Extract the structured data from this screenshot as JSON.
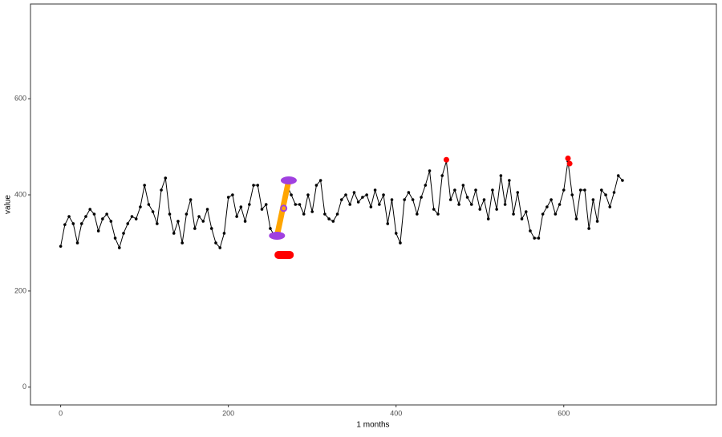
{
  "chart_data": {
    "type": "line",
    "x_label": "1 months",
    "y_label": "value",
    "x": [
      0,
      5,
      10,
      15,
      20,
      25,
      30,
      35,
      40,
      45,
      50,
      55,
      60,
      65,
      70,
      75,
      80,
      85,
      90,
      95,
      100,
      105,
      110,
      115,
      120,
      125,
      130,
      135,
      140,
      145,
      150,
      155,
      160,
      165,
      170,
      175,
      180,
      185,
      190,
      195,
      200,
      205,
      210,
      215,
      220,
      225,
      230,
      235,
      240,
      245,
      250,
      255,
      260,
      265,
      270,
      275,
      280,
      285,
      290,
      295,
      300,
      305,
      310,
      315,
      320,
      325,
      330,
      335,
      340,
      345,
      350,
      355,
      360,
      365,
      370,
      375,
      380,
      385,
      390,
      395,
      400,
      405,
      410,
      415,
      420,
      425,
      430,
      435,
      440,
      445,
      450,
      455,
      460,
      465,
      470,
      475,
      480,
      485,
      490,
      495,
      500,
      505,
      510,
      515,
      520,
      525,
      530,
      535,
      540,
      545,
      550,
      555,
      560,
      565,
      570,
      575,
      580,
      585,
      590,
      595,
      600,
      605,
      610,
      615,
      620,
      625,
      630,
      635,
      640,
      645,
      650,
      655,
      660,
      665,
      670
    ],
    "series": [
      {
        "name": "value",
        "color": "#000000",
        "values": [
          293,
          338,
          355,
          340,
          300,
          340,
          355,
          370,
          360,
          325,
          350,
          360,
          345,
          310,
          290,
          320,
          340,
          355,
          350,
          375,
          420,
          380,
          365,
          340,
          410,
          435,
          360,
          320,
          345,
          300,
          360,
          390,
          330,
          355,
          345,
          370,
          330,
          300,
          290,
          320,
          395,
          400,
          355,
          375,
          345,
          380,
          420,
          420,
          370,
          380,
          330,
          315,
          320,
          380,
          420,
          400,
          380,
          380,
          360,
          400,
          365,
          420,
          430,
          360,
          350,
          345,
          360,
          390,
          400,
          380,
          405,
          385,
          395,
          400,
          375,
          410,
          380,
          400,
          340,
          390,
          320,
          300,
          390,
          405,
          390,
          360,
          395,
          420,
          450,
          370,
          360,
          440,
          470,
          390,
          410,
          380,
          420,
          395,
          380,
          410,
          370,
          390,
          350,
          410,
          370,
          440,
          380,
          430,
          360,
          405,
          350,
          365,
          325,
          310,
          310,
          360,
          375,
          390,
          360,
          380,
          410,
          470,
          400,
          350,
          410,
          410,
          330,
          390,
          345,
          410,
          400,
          375,
          405,
          440,
          430
        ]
      }
    ],
    "highlight_line": {
      "x": [
        258,
        272
      ],
      "y": [
        315,
        430
      ],
      "color": "#ffa500"
    },
    "endpoints": {
      "x": [
        258,
        272
      ],
      "y": [
        315,
        430
      ],
      "color": "#a040e0"
    },
    "red_band": {
      "x": [
        255,
        278
      ],
      "y": 275,
      "color": "#ff0000"
    },
    "red_points": {
      "x": [
        460,
        605,
        607
      ],
      "y": [
        473,
        476,
        465
      ],
      "color": "#ff0000"
    },
    "open_point": {
      "x": 266,
      "y": 372,
      "color": "#a040e0"
    },
    "xlim": [
      -36,
      782
    ],
    "ylim": [
      -37,
      797
    ],
    "xticks": [
      0,
      200,
      400,
      600
    ],
    "yticks": [
      0,
      200,
      400,
      600
    ]
  }
}
